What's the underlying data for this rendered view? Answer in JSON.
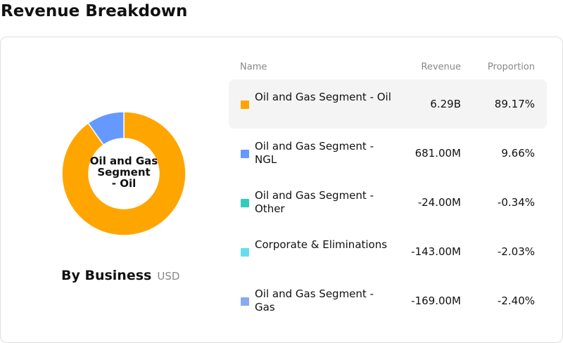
{
  "page": {
    "title": "Revenue Breakdown"
  },
  "panel": {
    "title": "By Business",
    "unit": "USD"
  },
  "table": {
    "headers": {
      "name": "Name",
      "revenue": "Revenue",
      "proportion": "Proportion"
    },
    "rows": [
      {
        "name": "Oil and Gas Segment - Oil",
        "revenue": "6.29B",
        "proportion": "89.17%",
        "color": "#FFA500"
      },
      {
        "name": "Oil and Gas Segment - NGL",
        "revenue": "681.00M",
        "proportion": "9.66%",
        "color": "#6699FF"
      },
      {
        "name": "Oil and Gas Segment - Other",
        "revenue": "-24.00M",
        "proportion": "-0.34%",
        "color": "#33CCBB"
      },
      {
        "name": "Corporate & Eliminations",
        "revenue": "-143.00M",
        "proportion": "-2.03%",
        "color": "#66DDEE"
      },
      {
        "name": "Oil and Gas Segment - Gas",
        "revenue": "-169.00M",
        "proportion": "-2.40%",
        "color": "#88AAF5"
      }
    ]
  },
  "chart_data": {
    "type": "pie",
    "style": "donut",
    "center_label": [
      "Oil and Gas",
      "Segment",
      "- Oil"
    ],
    "slices": [
      {
        "label": "Oil and Gas Segment - Oil",
        "value": 89.17,
        "color": "#FFA500"
      },
      {
        "label": "Oil and Gas Segment - NGL",
        "value": 9.66,
        "color": "#6699FF"
      }
    ]
  }
}
